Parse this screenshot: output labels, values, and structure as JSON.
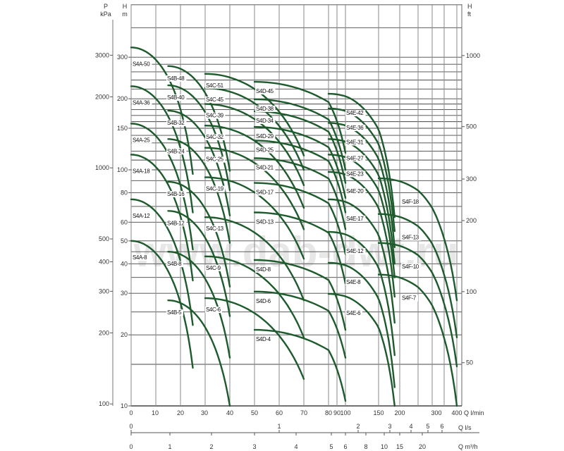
{
  "chart_data": {
    "type": "line",
    "title": "",
    "watermark": "www.dab-dwt.ru",
    "y_scale": "log",
    "grid": true,
    "curve_color": "#1d5a2c",
    "y_axes": {
      "left_pressure": {
        "label_top": "P",
        "label_unit": "kPa",
        "ticks": [
          3000,
          2000,
          1000,
          500,
          400,
          300,
          200,
          100
        ]
      },
      "left_head": {
        "label_top": "H",
        "label_unit": "m",
        "ticks": [
          300,
          200,
          150,
          100,
          80,
          60,
          50,
          40,
          30,
          20,
          10
        ],
        "range": [
          10,
          500
        ]
      },
      "right_head": {
        "label_top": "H",
        "label_unit": "ft",
        "ticks": [
          1000,
          500,
          300,
          200,
          100,
          50
        ]
      }
    },
    "x_axes": {
      "flow_lmin": {
        "label": "Q l/min",
        "ticks": [
          0,
          10,
          20,
          30,
          40,
          50,
          60,
          70,
          80,
          90,
          100,
          150,
          200,
          300,
          400
        ]
      },
      "flow_ls": {
        "label": "Q l/s",
        "ticks": [
          0,
          1,
          2,
          3,
          4,
          5,
          6
        ]
      },
      "flow_m3h": {
        "label": "Q m³/h",
        "ticks": [
          0,
          1,
          2,
          3,
          4,
          5,
          6,
          8,
          10,
          15,
          20
        ]
      }
    },
    "series": [
      {
        "name": "S4A-50",
        "family": "A",
        "q": [
          0,
          25
        ],
        "h": [
          330,
          96
        ]
      },
      {
        "name": "S4A-36",
        "family": "A",
        "q": [
          0,
          25
        ],
        "h": [
          226,
          66
        ]
      },
      {
        "name": "S4A-25",
        "family": "A",
        "q": [
          0,
          25
        ],
        "h": [
          157,
          46
        ]
      },
      {
        "name": "S4A-18",
        "family": "A",
        "q": [
          0,
          25
        ],
        "h": [
          116,
          34
        ]
      },
      {
        "name": "S4A-12",
        "family": "A",
        "q": [
          0,
          25
        ],
        "h": [
          75,
          22
        ]
      },
      {
        "name": "S4A-8",
        "family": "A",
        "q": [
          0,
          25
        ],
        "h": [
          50,
          14.5
        ]
      },
      {
        "name": "S4B-48",
        "family": "B",
        "q": [
          15,
          40
        ],
        "h": [
          275,
          99
        ]
      },
      {
        "name": "S4B-40",
        "family": "B",
        "q": [
          15,
          40
        ],
        "h": [
          228,
          82
        ]
      },
      {
        "name": "S4B-32",
        "family": "B",
        "q": [
          15,
          40
        ],
        "h": [
          178,
          64
        ]
      },
      {
        "name": "S4B-24",
        "family": "B",
        "q": [
          15,
          40
        ],
        "h": [
          135,
          49
        ]
      },
      {
        "name": "S4B-16",
        "family": "B",
        "q": [
          15,
          40
        ],
        "h": [
          89,
          32
        ]
      },
      {
        "name": "S4B-12",
        "family": "B",
        "q": [
          15,
          40
        ],
        "h": [
          67,
          24
        ]
      },
      {
        "name": "S4B-8",
        "family": "B",
        "q": [
          15,
          40
        ],
        "h": [
          45,
          16
        ]
      },
      {
        "name": "S4B-5",
        "family": "B",
        "q": [
          15,
          40
        ],
        "h": [
          28,
          10
        ]
      },
      {
        "name": "S4C-51",
        "family": "C",
        "q": [
          30,
          70
        ],
        "h": [
          255,
          115
        ]
      },
      {
        "name": "S4C-45",
        "family": "C",
        "q": [
          30,
          70
        ],
        "h": [
          222,
          100
        ]
      },
      {
        "name": "S4C-39",
        "family": "C",
        "q": [
          30,
          70
        ],
        "h": [
          190,
          86
        ]
      },
      {
        "name": "S4C-32",
        "family": "C",
        "q": [
          30,
          70
        ],
        "h": [
          154,
          69
        ]
      },
      {
        "name": "S4C-25",
        "family": "C",
        "q": [
          30,
          70
        ],
        "h": [
          124,
          56
        ]
      },
      {
        "name": "S4C-19",
        "family": "C",
        "q": [
          30,
          70
        ],
        "h": [
          93,
          42
        ]
      },
      {
        "name": "S4C-13",
        "family": "C",
        "q": [
          30,
          70
        ],
        "h": [
          63,
          28
        ]
      },
      {
        "name": "S4C-9",
        "family": "C",
        "q": [
          30,
          70
        ],
        "h": [
          43,
          19.5
        ]
      },
      {
        "name": "S4C-6",
        "family": "C",
        "q": [
          30,
          70
        ],
        "h": [
          28.6,
          13
        ]
      },
      {
        "name": "S4D-45",
        "family": "D",
        "q": [
          50,
          100
        ],
        "h": [
          236,
          118
        ]
      },
      {
        "name": "S4D-38",
        "family": "D",
        "q": [
          50,
          100
        ],
        "h": [
          199,
          100
        ]
      },
      {
        "name": "S4D-34",
        "family": "D",
        "q": [
          50,
          100
        ],
        "h": [
          177,
          88
        ]
      },
      {
        "name": "S4D-29",
        "family": "D",
        "q": [
          50,
          100
        ],
        "h": [
          152,
          76
        ]
      },
      {
        "name": "S4D-25",
        "family": "D",
        "q": [
          50,
          100
        ],
        "h": [
          133,
          66
        ]
      },
      {
        "name": "S4D-21",
        "family": "D",
        "q": [
          50,
          100
        ],
        "h": [
          112,
          56
        ]
      },
      {
        "name": "S4D-17",
        "family": "D",
        "q": [
          50,
          100
        ],
        "h": [
          88,
          44
        ]
      },
      {
        "name": "S4D-13",
        "family": "D",
        "q": [
          50,
          100
        ],
        "h": [
          66,
          33
        ]
      },
      {
        "name": "S4D-8",
        "family": "D",
        "q": [
          50,
          100
        ],
        "h": [
          41.5,
          21
        ]
      },
      {
        "name": "S4D-6",
        "family": "D",
        "q": [
          50,
          100
        ],
        "h": [
          30.5,
          16
        ]
      },
      {
        "name": "S4D-4",
        "family": "D",
        "q": [
          50,
          100
        ],
        "h": [
          21,
          10.5
        ]
      },
      {
        "name": "S4E-42",
        "family": "E",
        "q": [
          80,
          188
        ],
        "h": [
          210,
          63
        ]
      },
      {
        "name": "S4E-36",
        "family": "E",
        "q": [
          80,
          188
        ],
        "h": [
          182,
          55
        ]
      },
      {
        "name": "S4E-31",
        "family": "E",
        "q": [
          80,
          188
        ],
        "h": [
          158,
          47
        ]
      },
      {
        "name": "S4E-27",
        "family": "E",
        "q": [
          80,
          188
        ],
        "h": [
          135,
          40
        ]
      },
      {
        "name": "S4E-23",
        "family": "E",
        "q": [
          80,
          188
        ],
        "h": [
          116,
          35
        ]
      },
      {
        "name": "S4E-20",
        "family": "E",
        "q": [
          80,
          188
        ],
        "h": [
          98,
          29
        ]
      },
      {
        "name": "S4E-17",
        "family": "E",
        "q": [
          80,
          188
        ],
        "h": [
          75,
          22.5
        ]
      },
      {
        "name": "S4E-12",
        "family": "E",
        "q": [
          80,
          188
        ],
        "h": [
          54.6,
          16.4
        ]
      },
      {
        "name": "S4E-8",
        "family": "E",
        "q": [
          80,
          188
        ],
        "h": [
          40.4,
          12
        ]
      },
      {
        "name": "S4E-6",
        "family": "E",
        "q": [
          80,
          188
        ],
        "h": [
          29.8,
          10
        ]
      },
      {
        "name": "S4F-18",
        "family": "F",
        "q": [
          150,
          400
        ],
        "h": [
          92,
          28
        ]
      },
      {
        "name": "S4F-13",
        "family": "F",
        "q": [
          150,
          400
        ],
        "h": [
          65,
          19.5
        ]
      },
      {
        "name": "S4F-10",
        "family": "F",
        "q": [
          150,
          400
        ],
        "h": [
          49,
          14.7
        ]
      },
      {
        "name": "S4F-7",
        "family": "F",
        "q": [
          150,
          400
        ],
        "h": [
          36,
          10
        ]
      }
    ]
  }
}
